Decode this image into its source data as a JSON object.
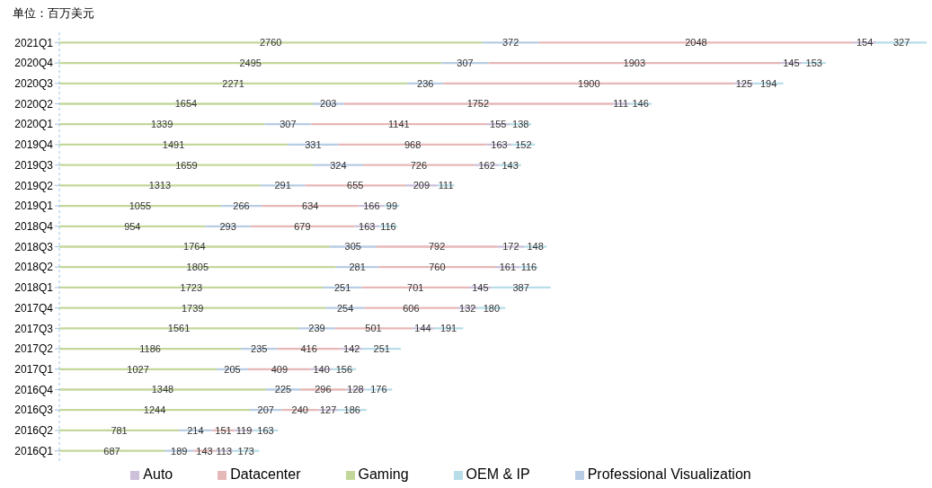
{
  "chart_data": {
    "type": "bar",
    "orientation": "horizontal",
    "stacked": true,
    "data_labels": true,
    "grid": false,
    "legend": "bottom",
    "annotations": [
      "单位：百万美元"
    ],
    "categories": [
      "2021Q1",
      "2020Q4",
      "2020Q3",
      "2020Q2",
      "2020Q1",
      "2019Q4",
      "2019Q3",
      "2019Q2",
      "2019Q1",
      "2018Q4",
      "2018Q3",
      "2018Q2",
      "2018Q1",
      "2017Q4",
      "2017Q3",
      "2017Q2",
      "2017Q1",
      "2016Q4",
      "2016Q3",
      "2016Q2",
      "2016Q1"
    ],
    "series": [
      {
        "name": "Gaming",
        "color": "#c4d79b",
        "values": [
          2760,
          2495,
          2271,
          1654,
          1339,
          1491,
          1659,
          1313,
          1055,
          954,
          1764,
          1805,
          1723,
          1739,
          1561,
          1186,
          1027,
          1348,
          1244,
          781,
          687
        ]
      },
      {
        "name": "Professional Visualization",
        "color": "#b8cce4",
        "values": [
          372,
          307,
          236,
          203,
          307,
          331,
          324,
          291,
          266,
          293,
          305,
          281,
          251,
          254,
          239,
          235,
          205,
          225,
          207,
          214,
          189
        ]
      },
      {
        "name": "Datacenter",
        "color": "#e6b8b7",
        "values": [
          2048,
          1903,
          1900,
          1752,
          1141,
          968,
          726,
          655,
          634,
          679,
          792,
          760,
          701,
          606,
          501,
          416,
          409,
          296,
          240,
          151,
          143
        ]
      },
      {
        "name": "Auto",
        "color": "#ccc0da",
        "values": [
          154,
          145,
          125,
          111,
          155,
          163,
          162,
          209,
          166,
          163,
          172,
          161,
          145,
          132,
          144,
          142,
          140,
          128,
          127,
          119,
          113
        ]
      },
      {
        "name": "OEM & IP",
        "color": "#b7dee8",
        "values": [
          327,
          153,
          194,
          146,
          138,
          152,
          143,
          111,
          99,
          116,
          148,
          116,
          387,
          180,
          191,
          251,
          156,
          176,
          186,
          163,
          173
        ]
      }
    ]
  }
}
